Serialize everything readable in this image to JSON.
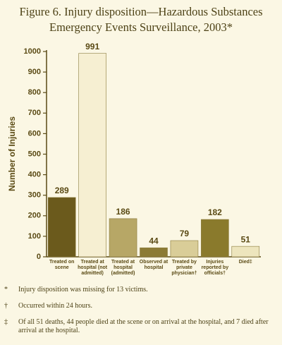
{
  "chart_data": {
    "type": "bar",
    "title": "Figure 6. Injury disposition—Hazardous Substances Emergency Events Surveillance, 2003*",
    "y_label": "Number of Injuries",
    "categories": [
      "Treated on scene",
      "Treated at hospital (not admitted)",
      "Treated at hospital (admitted)",
      "Observed at hospital",
      "Treated by private physician†",
      "Injuries reported by officials†",
      "Died‡"
    ],
    "values": [
      289,
      991,
      186,
      44,
      79,
      182,
      51
    ],
    "colors": [
      "#6b5a1c",
      "#f6efd2",
      "#b7a766",
      "#8c7b35",
      "#d9cd98",
      "#8a7a2c",
      "#ede5bd"
    ],
    "ylim": [
      0,
      1000
    ],
    "yticks": [
      0,
      100,
      200,
      300,
      400,
      500,
      600,
      700,
      800,
      900,
      1000
    ],
    "notes": [
      {
        "symbol": "*",
        "text": "Injury disposition was missing for 13 victims."
      },
      {
        "symbol": "†",
        "text": "Occurred within 24 hours."
      },
      {
        "symbol": "‡",
        "text": "Of all 51 deaths, 44 people died at the scene or on arrival at the hospital, and 7 died after arrival at the hospital."
      }
    ]
  }
}
